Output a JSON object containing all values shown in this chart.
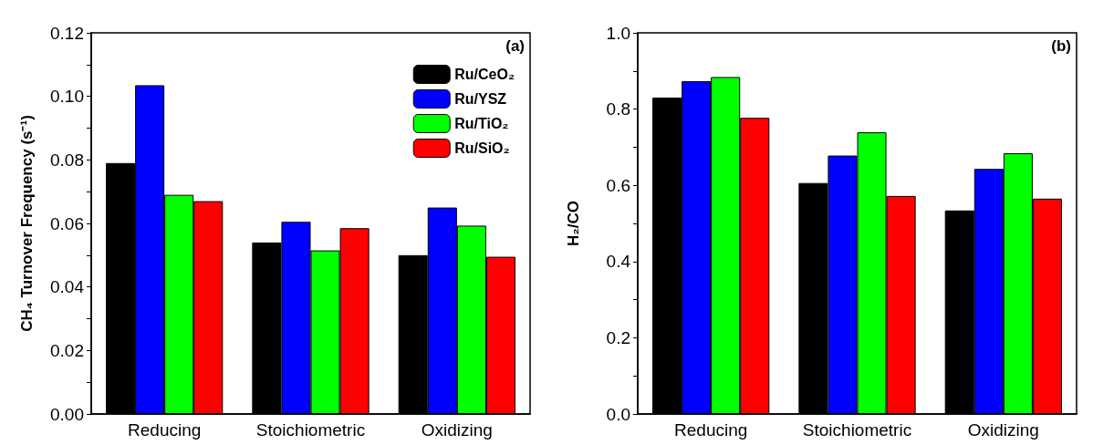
{
  "chart_data": [
    {
      "type": "bar",
      "categories": [
        "Reducing",
        "Stoichiometric",
        "Oxidizing"
      ],
      "ylabel": "CH₄ Turnover Frequency (s⁻¹)",
      "annotations": [
        "(a)"
      ],
      "ylim": [
        0,
        0.12
      ],
      "yticks": [
        {
          "value": 0,
          "label": "0.00"
        },
        {
          "value": 0.01,
          "label": null
        },
        0.02,
        {
          "value": 0.03,
          "label": null
        },
        0.04,
        {
          "value": 0.05,
          "label": null
        },
        0.06,
        {
          "value": 0.07,
          "label": null
        },
        0.08,
        {
          "value": 0.09,
          "label": null
        },
        {
          "value": 0.1,
          "label": "0.10"
        },
        {
          "value": 0.11,
          "label": null
        },
        0.12
      ],
      "series": [
        {
          "name": "Ru/CeO₂",
          "color": "#000000",
          "values": [
            0.079,
            0.054,
            0.05
          ]
        },
        {
          "name": "Ru/YSZ",
          "color": "#0000ff",
          "values": [
            0.1035,
            0.0605,
            0.065
          ]
        },
        {
          "name": "Ru/TiO₂",
          "color": "#00ff00",
          "values": [
            0.069,
            0.0515,
            0.0593
          ]
        },
        {
          "name": "Ru/SiO₂",
          "color": "#ff0000",
          "values": [
            0.067,
            0.0585,
            0.0495
          ]
        }
      ],
      "legend": "top right",
      "grid": false
    },
    {
      "type": "bar",
      "categories": [
        "Reducing",
        "Stoichiometric",
        "Oxidizing"
      ],
      "ylabel": "H₂/CO",
      "annotations": [
        "(b)"
      ],
      "ylim": [
        0,
        1
      ],
      "yticks": [
        {
          "value": 0,
          "label": "0.0"
        },
        {
          "value": 0.1,
          "label": null
        },
        0.2,
        {
          "value": 0.3,
          "label": null
        },
        0.4,
        {
          "value": 0.5,
          "label": null
        },
        0.6,
        {
          "value": 0.7,
          "label": null
        },
        0.8,
        {
          "value": 0.9,
          "label": null
        },
        {
          "value": 1,
          "label": "1.0"
        }
      ],
      "series": [
        {
          "color": "#000000",
          "values": [
            0.83,
            0.606,
            0.534
          ]
        },
        {
          "color": "#0000ff",
          "values": [
            0.873,
            0.678,
            0.643
          ]
        },
        {
          "color": "#00ff00",
          "values": [
            0.884,
            0.739,
            0.684
          ]
        },
        {
          "color": "#ff0000",
          "values": [
            0.777,
            0.572,
            0.565
          ]
        }
      ],
      "legend": false,
      "grid": false
    }
  ]
}
